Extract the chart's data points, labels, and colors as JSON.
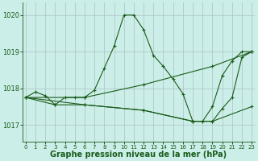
{
  "background_color": "#cceee8",
  "grid_color": "#b0c8c8",
  "line_color": "#1a5c1a",
  "xlabel": "Graphe pression niveau de la mer (hPa)",
  "xlabel_fontsize": 7,
  "yticks": [
    1017,
    1018,
    1019,
    1020
  ],
  "xticks": [
    0,
    1,
    2,
    3,
    4,
    5,
    6,
    7,
    8,
    9,
    10,
    11,
    12,
    13,
    14,
    15,
    16,
    17,
    18,
    19,
    20,
    21,
    22,
    23
  ],
  "xlim": [
    -0.3,
    23.3
  ],
  "ylim": [
    1016.55,
    1020.35
  ],
  "lines": [
    {
      "x": [
        0,
        1,
        2,
        3,
        4,
        5,
        6,
        7,
        8,
        9,
        10,
        11,
        12,
        13,
        14,
        15,
        16,
        17,
        18,
        19,
        20,
        21,
        22,
        23
      ],
      "y": [
        1017.75,
        1017.9,
        1017.8,
        1017.55,
        1017.75,
        1017.75,
        1017.75,
        1017.95,
        1018.55,
        1019.15,
        1020.0,
        1020.0,
        1019.6,
        1018.9,
        1018.6,
        1018.25,
        1017.85,
        1017.1,
        1017.1,
        1017.5,
        1018.35,
        1018.75,
        1019.0,
        1019.0
      ]
    },
    {
      "x": [
        0,
        6,
        12,
        19,
        23
      ],
      "y": [
        1017.75,
        1017.75,
        1018.1,
        1018.6,
        1019.0
      ]
    },
    {
      "x": [
        0,
        3,
        6,
        12,
        17,
        19,
        23
      ],
      "y": [
        1017.75,
        1017.55,
        1017.55,
        1017.4,
        1017.1,
        1017.1,
        1017.5
      ]
    },
    {
      "x": [
        0,
        6,
        12,
        17,
        19,
        20,
        21,
        22,
        23
      ],
      "y": [
        1017.75,
        1017.55,
        1017.4,
        1017.1,
        1017.1,
        1017.45,
        1017.75,
        1018.85,
        1019.0
      ]
    }
  ]
}
